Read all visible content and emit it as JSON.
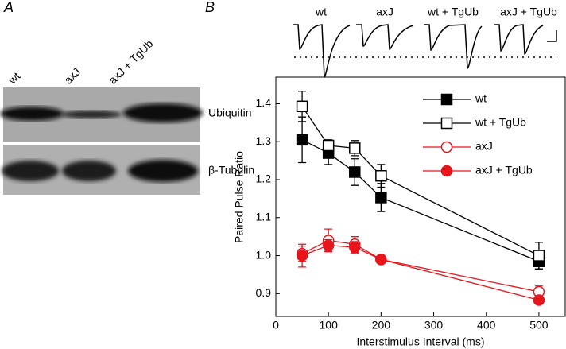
{
  "panel_a": {
    "label": "A",
    "lanes": [
      "wt",
      "axJ",
      "axJ + TgUb"
    ],
    "blots": [
      "Ubiquitin",
      "β-Tubulin"
    ]
  },
  "panel_b": {
    "label": "B",
    "traces": [
      "wt",
      "axJ",
      "wt + TgUb",
      "axJ + TgUb"
    ]
  },
  "chart_data": {
    "type": "line",
    "x_label": "Interstimulus Interval (ms)",
    "y_label": "Paired Pulse Ratio",
    "x": [
      50,
      100,
      150,
      200,
      500
    ],
    "xlim": [
      0,
      550
    ],
    "xticks": [
      0,
      100,
      200,
      300,
      400,
      500
    ],
    "ylim": [
      0.84,
      1.47
    ],
    "yticks": [
      0.9,
      {
        "value": 1,
        "label": "1.0"
      },
      1.1,
      1.2,
      1.3,
      1.4
    ],
    "series": [
      {
        "name": "wt",
        "color": "#000000",
        "marker": "square",
        "filled": true,
        "values": [
          1.305,
          1.27,
          1.22,
          1.153,
          0.985
        ],
        "errors": [
          0.06,
          0.03,
          0.035,
          0.037,
          0.02
        ]
      },
      {
        "name": "wt + TgUb",
        "color": "#000000",
        "marker": "square",
        "filled": false,
        "values": [
          1.393,
          1.29,
          1.283,
          1.21,
          1.0
        ],
        "errors": [
          0.04,
          0.015,
          0.02,
          0.03,
          0.035
        ]
      },
      {
        "name": "axJ",
        "color": "#e8141b",
        "marker": "circle",
        "filled": false,
        "values": [
          1.005,
          1.04,
          1.03,
          0.99,
          0.905
        ],
        "errors": [
          0.02,
          0.03,
          0.02,
          0.01,
          0.015
        ]
      },
      {
        "name": "axJ + TgUb",
        "color": "#e8141b",
        "marker": "circle",
        "filled": true,
        "values": [
          1.0,
          1.027,
          1.022,
          0.99,
          0.883
        ],
        "errors": [
          0.03,
          0.015,
          0.015,
          0.01,
          0.01
        ]
      }
    ]
  }
}
